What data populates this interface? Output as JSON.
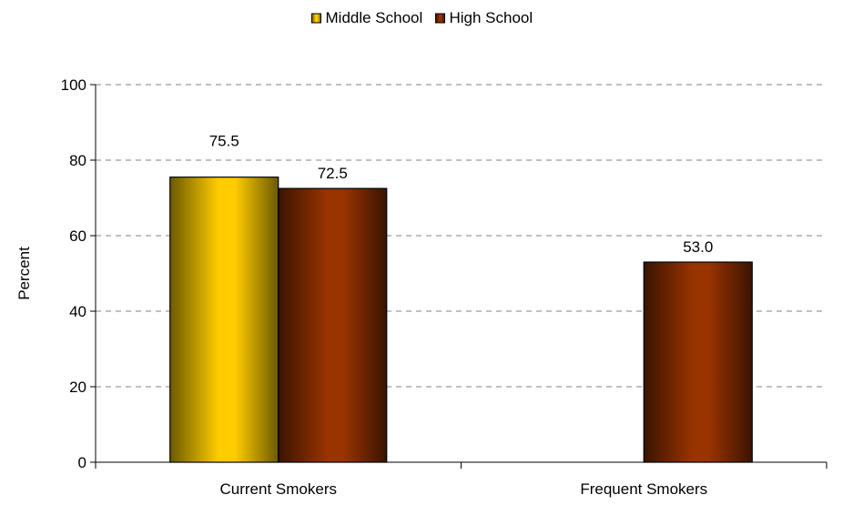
{
  "chart_data": {
    "type": "bar",
    "title": "",
    "xlabel": "",
    "ylabel": "Percent",
    "ylim": [
      0,
      100
    ],
    "y_ticks": [
      0,
      20,
      40,
      60,
      80,
      100
    ],
    "grid": "horizontal dashed",
    "legend_position": "top-center",
    "categories": [
      "Current Smokers",
      "Frequent Smokers"
    ],
    "series": [
      {
        "name": "Middle School",
        "values": [
          75.5,
          null
        ],
        "data_labels": [
          "75.5",
          ""
        ],
        "color": "#FFCC00",
        "shade_color": "#6B5A00"
      },
      {
        "name": "High School",
        "values": [
          72.5,
          53.0
        ],
        "data_labels": [
          "72.5",
          "53.0"
        ],
        "color": "#993300",
        "shade_color": "#3A1400"
      }
    ]
  }
}
